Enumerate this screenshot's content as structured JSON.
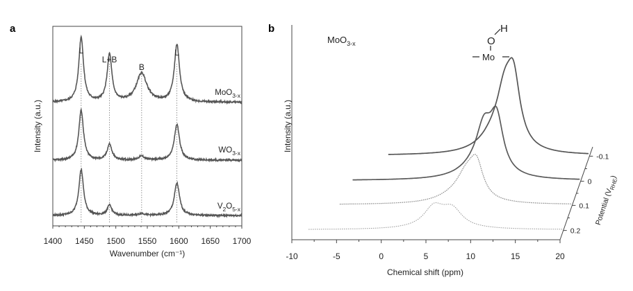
{
  "chart_data": [
    {
      "panel": "a",
      "type": "line",
      "xlabel": "Wavenumber (cm⁻¹)",
      "ylabel": "Intensity (a.u.)",
      "xlim": [
        1400,
        1700
      ],
      "xticks": [
        1400,
        1450,
        1500,
        1550,
        1600,
        1650,
        1700
      ],
      "peak_labels": [
        {
          "text": "L",
          "x": 1445
        },
        {
          "text": "L+B",
          "x": 1490
        },
        {
          "text": "B",
          "x": 1541
        },
        {
          "text": "L",
          "x": 1597
        }
      ],
      "guide_lines_x": [
        1445,
        1490,
        1541,
        1597
      ],
      "series": [
        {
          "name": "MoO3-x",
          "label_main": "MoO",
          "label_sub": "3-x",
          "offset": 2.0,
          "baseline": 0.1,
          "peaks": [
            {
              "x": 1445,
              "h": 1.3,
              "w": 4.5
            },
            {
              "x": 1490,
              "h": 0.95,
              "w": 4.5
            },
            {
              "x": 1541,
              "h": 0.58,
              "w": 10
            },
            {
              "x": 1597,
              "h": 1.15,
              "w": 5
            }
          ]
        },
        {
          "name": "WO3-x",
          "label_main": "WO",
          "label_sub": "3-x",
          "offset": 1.0,
          "baseline": 0.05,
          "peaks": [
            {
              "x": 1445,
              "h": 1.0,
              "w": 4.5
            },
            {
              "x": 1490,
              "h": 0.32,
              "w": 4.5
            },
            {
              "x": 1541,
              "h": 0.08,
              "w": 6
            },
            {
              "x": 1597,
              "h": 0.72,
              "w": 5
            }
          ]
        },
        {
          "name": "V2O5-x",
          "label_main": "V",
          "label_sub1": "2",
          "label_mid": "O",
          "label_sub": "5-x",
          "offset": 0.0,
          "baseline": 0.04,
          "peaks": [
            {
              "x": 1445,
              "h": 0.92,
              "w": 4.5
            },
            {
              "x": 1490,
              "h": 0.2,
              "w": 4.5
            },
            {
              "x": 1541,
              "h": 0.04,
              "w": 6
            },
            {
              "x": 1597,
              "h": 0.65,
              "w": 5
            }
          ]
        }
      ]
    },
    {
      "panel": "b",
      "type": "line",
      "inset_label_main": "MoO",
      "inset_label_sub": "3-x",
      "xlabel": "Chemical shift (ppm)",
      "ylabel": "Intensity (a.u.)",
      "zlabel_main": "Potential (V",
      "zlabel_sub": "RHE",
      "zlabel_end": ")",
      "xlim": [
        -10,
        20
      ],
      "xticks": [
        -10,
        -5,
        0,
        5,
        10,
        15,
        20
      ],
      "zticks": [
        "-0.1",
        "0",
        "0.1",
        "0.2"
      ],
      "structure": {
        "top": "H",
        "middle": "O",
        "bottom": "Mo"
      },
      "series": [
        {
          "potential": "-0.1",
          "x_range": [
            -2.5,
            20
          ],
          "peaks": [
            {
              "x": 11.5,
              "h": 0.85,
              "w": 0.9
            },
            {
              "x": 10.5,
              "h": 0.55,
              "w": 1.0
            },
            {
              "x": 9.5,
              "h": 0.25,
              "w": 2.0
            }
          ]
        },
        {
          "potential": "0",
          "x_range": [
            -5.5,
            20
          ],
          "peaks": [
            {
              "x": 10.6,
              "h": 0.7,
              "w": 0.9
            },
            {
              "x": 9.2,
              "h": 0.5,
              "w": 1.0
            },
            {
              "x": 8.5,
              "h": 0.18,
              "w": 2.2
            }
          ]
        },
        {
          "potential": "0.1",
          "x_range": [
            -6,
            20
          ],
          "peaks": [
            {
              "x": 9.3,
              "h": 0.42,
              "w": 0.9
            },
            {
              "x": 8.2,
              "h": 0.3,
              "w": 1.3
            },
            {
              "x": 7.0,
              "h": 0.1,
              "w": 2.5
            }
          ]
        },
        {
          "potential": "0.2",
          "x_range": [
            -8.5,
            20
          ],
          "peaks": [
            {
              "x": 7.6,
              "h": 0.2,
              "w": 1.3
            },
            {
              "x": 5.5,
              "h": 0.22,
              "w": 1.3
            },
            {
              "x": 6.3,
              "h": 0.08,
              "w": 2.5
            }
          ]
        }
      ]
    }
  ]
}
